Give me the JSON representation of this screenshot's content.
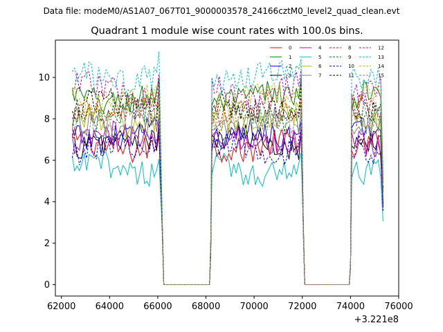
{
  "suptitle": "Data file: modeM0/AS1A07_067T01_9000003578_24166cztM0_level2_quad_clean.evt",
  "chart_data": {
    "type": "line",
    "title": "Quadrant 1 module wise count rates with 100.0s bins.",
    "xlabel": "",
    "ylabel": "",
    "x_offset_label": "+3.221e8",
    "xlim": [
      61750,
      76000
    ],
    "ylim": [
      -0.55,
      11.8
    ],
    "x_ticks": [
      62000,
      64000,
      66000,
      68000,
      70000,
      72000,
      74000,
      76000
    ],
    "x_tick_labels": [
      "62000",
      "64000",
      "66000",
      "68000",
      "70000",
      "72000",
      "74000",
      "76000"
    ],
    "y_ticks": [
      0,
      2,
      4,
      6,
      8,
      10
    ],
    "y_tick_labels": [
      "0",
      "2",
      "4",
      "6",
      "8",
      "10"
    ],
    "grid": false,
    "legend_position": "top-right",
    "segments": [
      {
        "start": 62450,
        "end": 66050
      },
      {
        "start": 68250,
        "end": 71950
      },
      {
        "start": 74050,
        "end": 75350
      }
    ],
    "gap_x": [
      66200,
      66250,
      68150,
      68200,
      72050,
      72100,
      73950,
      74000
    ],
    "series": [
      {
        "name": "0",
        "color": "#ff0000",
        "dashed": false,
        "level": 6.7
      },
      {
        "name": "1",
        "color": "#008000",
        "dashed": false,
        "level": 9.0
      },
      {
        "name": "2",
        "color": "#0000ff",
        "dashed": false,
        "level": 7.2
      },
      {
        "name": "3",
        "color": "#000000",
        "dashed": false,
        "level": 6.9
      },
      {
        "name": "4",
        "color": "#c000c0",
        "dashed": false,
        "level": 7.0
      },
      {
        "name": "5",
        "color": "#00bfbf",
        "dashed": false,
        "level": 5.6
      },
      {
        "name": "6",
        "color": "#bfbf00",
        "dashed": false,
        "level": 7.9
      },
      {
        "name": "7",
        "color": "#808080",
        "dashed": false,
        "level": 7.7
      },
      {
        "name": "8",
        "color": "#ff0000",
        "dashed": true,
        "level": 8.4
      },
      {
        "name": "9",
        "color": "#008000",
        "dashed": true,
        "level": 8.2
      },
      {
        "name": "10",
        "color": "#0000ff",
        "dashed": true,
        "level": 6.6
      },
      {
        "name": "11",
        "color": "#000000",
        "dashed": true,
        "level": 8.6
      },
      {
        "name": "12",
        "color": "#c000c0",
        "dashed": true,
        "level": 9.4
      },
      {
        "name": "13",
        "color": "#00bfbf",
        "dashed": true,
        "level": 10.0
      },
      {
        "name": "14",
        "color": "#bfbf00",
        "dashed": true,
        "level": 8.9
      },
      {
        "name": "15",
        "color": "#808080",
        "dashed": true,
        "level": 8.0
      }
    ]
  }
}
